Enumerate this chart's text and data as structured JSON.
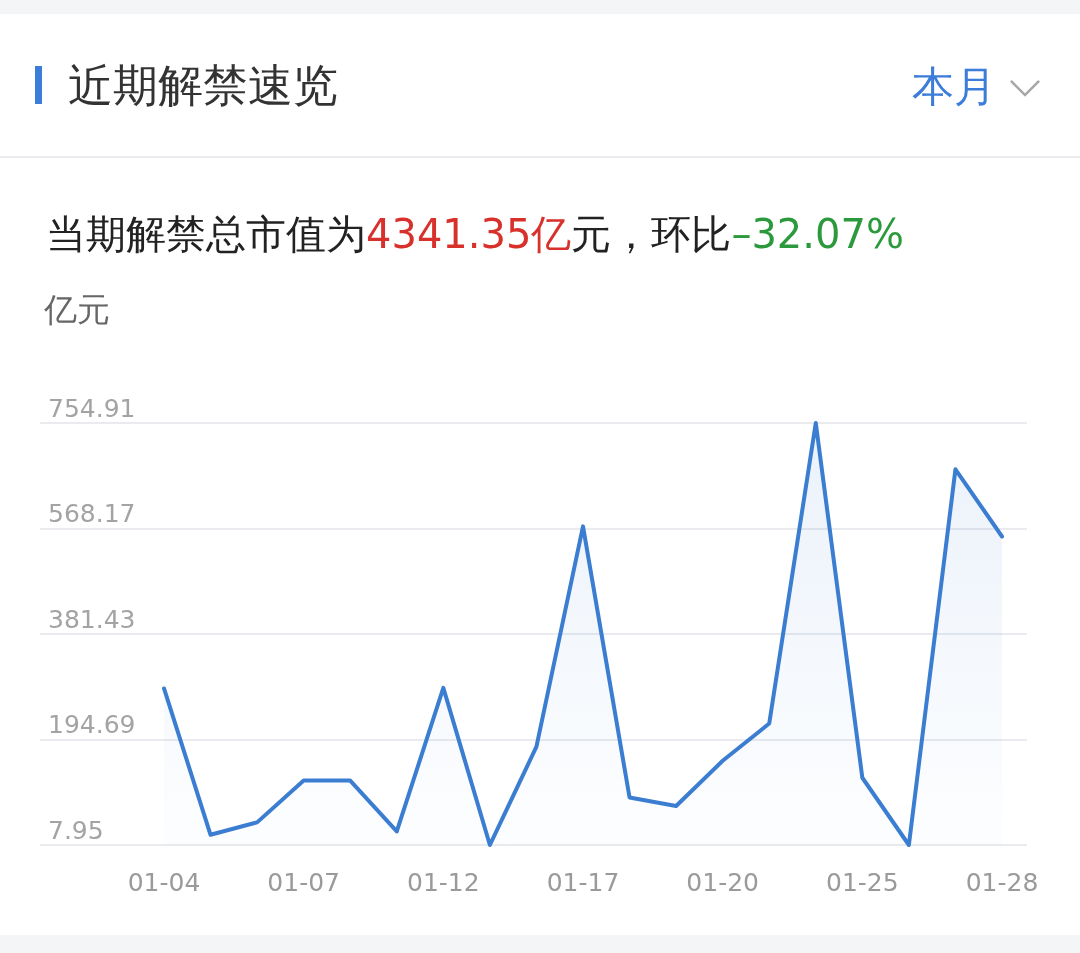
{
  "chart_data": {
    "type": "area",
    "title": "近期解禁速览",
    "subtitle": "当期解禁总市值为4341.35亿元，环比–32.07%",
    "ylabel": "亿元",
    "annotations": [
      "本月"
    ],
    "categories": [
      "01-04",
      null,
      null,
      "01-07",
      null,
      null,
      "01-12",
      null,
      null,
      "01-17",
      null,
      null,
      "01-20",
      null,
      null,
      "01-25",
      null,
      null,
      "01-28"
    ],
    "values": [
      285,
      26,
      48,
      122,
      122,
      32,
      286,
      7.95,
      182,
      572,
      92,
      77,
      157,
      223,
      754.91,
      127,
      7.95,
      673,
      554
    ],
    "color": "#3b7dd0",
    "ylim": [
      7.95,
      754.91
    ],
    "yticks": [
      7.95,
      194.69,
      381.43,
      568.17,
      754.91
    ],
    "grid": "y",
    "marker": "none"
  }
}
